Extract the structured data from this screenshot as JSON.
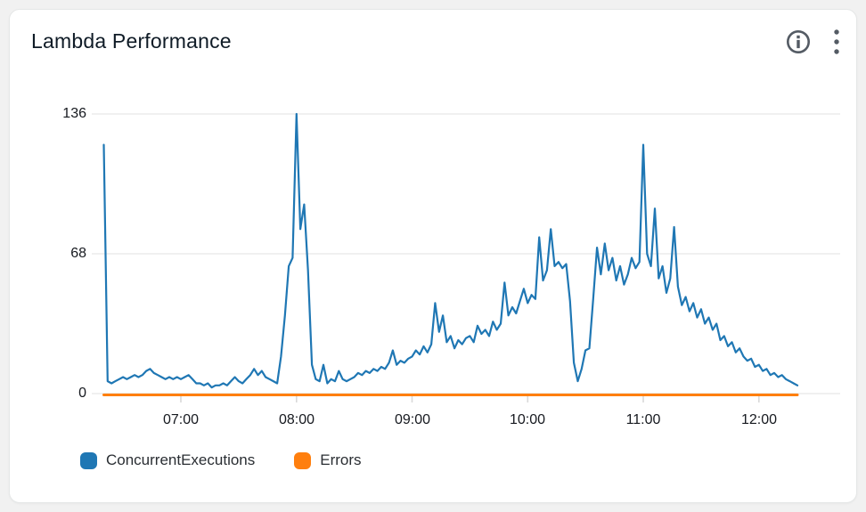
{
  "header": {
    "title": "Lambda Performance",
    "icons": [
      {
        "name": "info-icon",
        "glyph": "i-in-circle"
      },
      {
        "name": "kebab-menu-icon",
        "glyph": "vertical-ellipsis"
      }
    ]
  },
  "chart_data": {
    "type": "line",
    "title": "Lambda Performance",
    "x_axis": {
      "start_time": "06:20",
      "end_time": "12:20",
      "point_interval_minutes": 2,
      "tick_labels": [
        "07:00",
        "08:00",
        "09:00",
        "10:00",
        "11:00",
        "12:00"
      ]
    },
    "y_axis": {
      "tick_labels": [
        "136",
        "68",
        "0"
      ],
      "tick_values": [
        136,
        68,
        0
      ],
      "ylim": [
        0,
        136
      ]
    },
    "grid": "horizontal-only",
    "legend": {
      "position": "bottom-left",
      "entries": [
        {
          "label": "ConcurrentExecutions",
          "color": "#1f77b4"
        },
        {
          "label": "Errors",
          "color": "#ff7f0e"
        }
      ]
    },
    "series": [
      {
        "name": "ConcurrentExecutions",
        "color": "#1f77b4",
        "width": 2.2,
        "values": [
          121,
          6,
          5,
          6,
          7,
          8,
          7,
          8,
          9,
          8,
          9,
          11,
          12,
          10,
          9,
          8,
          7,
          8,
          7,
          8,
          7,
          8,
          9,
          7,
          5,
          5,
          4,
          5,
          3,
          4,
          4,
          5,
          4,
          6,
          8,
          6,
          5,
          7,
          9,
          12,
          9,
          11,
          8,
          7,
          6,
          5,
          18,
          38,
          62,
          66,
          136,
          80,
          92,
          60,
          14,
          7,
          6,
          14,
          5,
          7,
          6,
          11,
          7,
          6,
          7,
          8,
          10,
          9,
          11,
          10,
          12,
          11,
          13,
          12,
          15,
          21,
          14,
          16,
          15,
          17,
          18,
          21,
          19,
          23,
          20,
          24,
          44,
          30,
          38,
          25,
          28,
          22,
          26,
          24,
          27,
          28,
          25,
          33,
          29,
          31,
          28,
          35,
          31,
          34,
          54,
          38,
          42,
          39,
          45,
          51,
          44,
          48,
          46,
          76,
          55,
          60,
          80,
          62,
          64,
          61,
          63,
          45,
          15,
          6,
          12,
          21,
          22,
          46,
          71,
          58,
          73,
          60,
          66,
          55,
          62,
          53,
          58,
          66,
          61,
          64,
          121,
          68,
          62,
          90,
          56,
          62,
          49,
          56,
          81,
          52,
          43,
          47,
          40,
          44,
          37,
          41,
          34,
          37,
          31,
          34,
          26,
          28,
          23,
          25,
          20,
          22,
          18,
          16,
          17,
          13,
          14,
          11,
          12,
          9,
          10,
          8,
          9,
          7,
          6,
          5,
          4
        ]
      },
      {
        "name": "Errors",
        "color": "#ff7f0e",
        "width": 3,
        "constant": 0,
        "n_points": 2
      }
    ]
  },
  "colors": {
    "accent_blue": "#1f77b4",
    "accent_orange": "#ff7f0e",
    "grid": "#ececec",
    "tick_mark": "#d9d9d9",
    "axis_text": "#16191f",
    "icon": "#545b64",
    "card_bg": "#ffffff",
    "page_bg": "#f1f1f1"
  }
}
